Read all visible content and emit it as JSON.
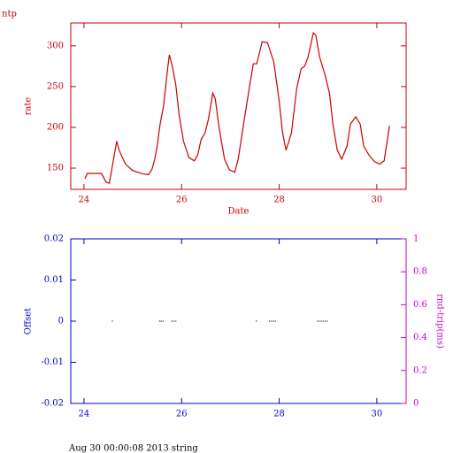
{
  "chart_data": [
    {
      "type": "line",
      "title": "ntp",
      "xlabel": "Date",
      "ylabel": "rate",
      "color": "#cc0000",
      "axis_color": "#cc0000",
      "x": [
        24.02,
        24.07,
        24.36,
        24.45,
        24.52,
        24.56,
        24.67,
        24.72,
        24.85,
        25.0,
        25.18,
        25.32,
        25.39,
        25.45,
        25.5,
        25.56,
        25.63,
        25.72,
        25.75,
        25.81,
        25.88,
        25.95,
        26.04,
        26.15,
        26.26,
        26.33,
        26.4,
        26.48,
        26.55,
        26.64,
        26.69,
        26.77,
        26.88,
        26.98,
        27.09,
        27.16,
        27.27,
        27.4,
        27.47,
        27.54,
        27.65,
        27.76,
        27.89,
        28.0,
        28.07,
        28.14,
        28.25,
        28.36,
        28.45,
        28.52,
        28.59,
        28.7,
        28.75,
        28.83,
        28.94,
        29.03,
        29.1,
        29.19,
        29.28,
        29.39,
        29.46,
        29.57,
        29.66,
        29.73,
        29.84,
        29.95,
        30.06,
        30.15,
        30.26
      ],
      "values": [
        137,
        143.5,
        143.5,
        133,
        131.5,
        145,
        183,
        172,
        155,
        147,
        143.5,
        142,
        148,
        161,
        177,
        204,
        226,
        275,
        289,
        275,
        253,
        215,
        183,
        163,
        159,
        166,
        185,
        193,
        210,
        242,
        235,
        199,
        161,
        148,
        145,
        161,
        204,
        253,
        278,
        278,
        305,
        304,
        280,
        232,
        193,
        172,
        193,
        248,
        272,
        275,
        286,
        316,
        313,
        286,
        264,
        242,
        204,
        172,
        161,
        177,
        204,
        213,
        204,
        177,
        166,
        158,
        155,
        159,
        202
      ],
      "xlim": [
        23.73,
        30.6
      ],
      "ylim": [
        124,
        328
      ],
      "xticks": [
        24,
        26,
        28,
        30
      ],
      "yticks": [
        150,
        200,
        250,
        300
      ]
    },
    {
      "type": "scatter",
      "ylabel": "Offset",
      "y2label": "rnd-trip(ms)",
      "color": "#000000",
      "axis_color": "#0000cc",
      "y2_color": "#cc00cc",
      "x": [
        24.58,
        25.55,
        25.58,
        25.62,
        25.8,
        25.84,
        25.88,
        27.53,
        27.8,
        27.84,
        27.88,
        27.92,
        28.78,
        28.82,
        28.86,
        28.9,
        28.94,
        28.98
      ],
      "values": [
        0,
        0,
        0,
        0,
        0,
        0,
        0,
        0,
        0,
        0,
        0,
        0,
        0,
        0,
        0,
        0,
        0,
        0
      ],
      "xlim": [
        23.73,
        30.6
      ],
      "ylim": [
        -0.02,
        0.02
      ],
      "xticks": [
        24,
        26,
        28,
        30
      ],
      "yticks": [
        -0.02,
        -0.01,
        0,
        0.01,
        0.02
      ],
      "y2lim": [
        0,
        1
      ],
      "y2ticks": [
        0,
        0.2,
        0.4,
        0.6,
        0.8,
        1
      ]
    }
  ],
  "footer": "Aug 30 00:00:08 2013 string"
}
